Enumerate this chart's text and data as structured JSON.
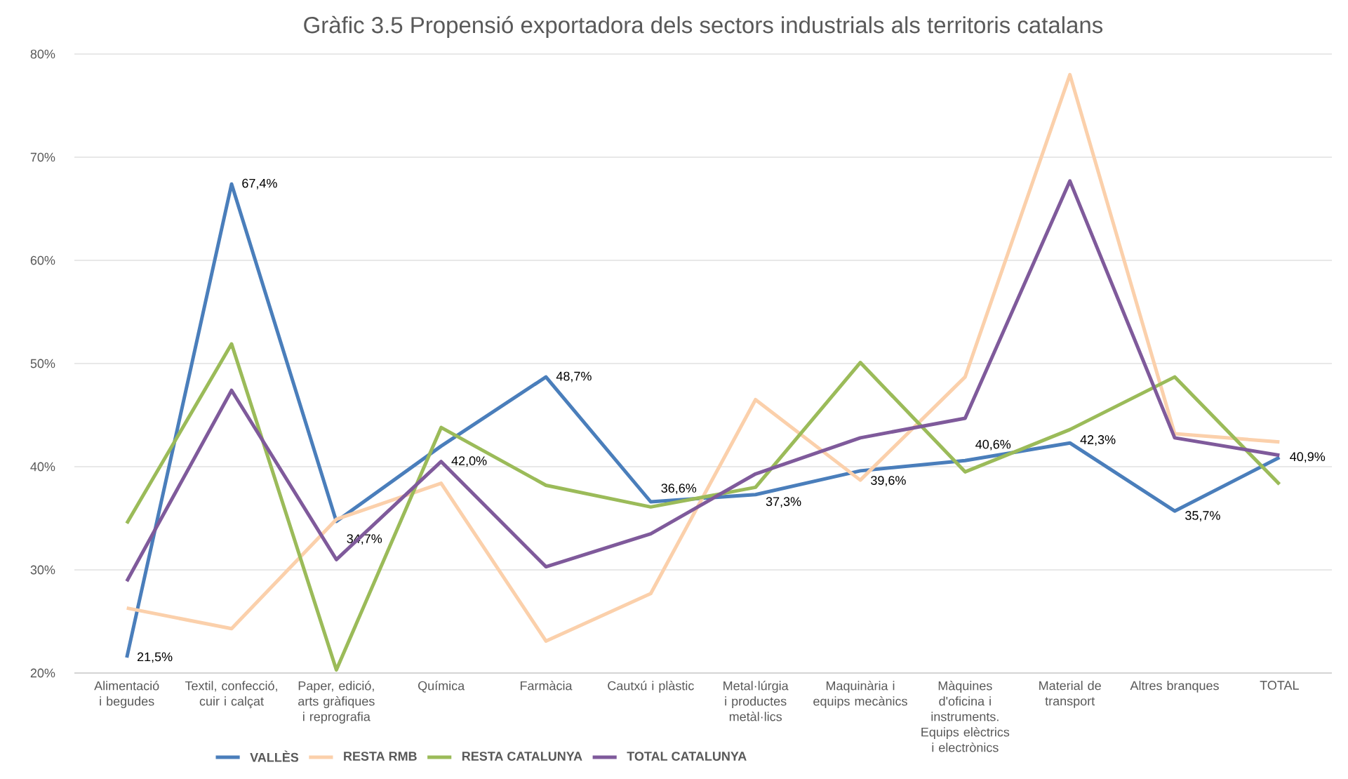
{
  "chart_data": {
    "type": "line",
    "title": "Gràfic 3.5 Propensió exportadora dels sectors industrials als territoris catalans",
    "categories": [
      "Alimentació i begudes",
      "Textil, confecció, cuir i calçat",
      "Paper, edició, arts gràfiques i reprografia",
      "Química",
      "Farmàcia",
      "Cautxú i plàstic",
      "Metal·lúrgia i productes metàl·lics",
      "Maquinària i equips mecànics",
      "Màquines d'oficina i instruments. Equips elèctrics i electrònics",
      "Material de transport",
      "Altres branques",
      "TOTAL"
    ],
    "series": [
      {
        "name": "VALLÈS",
        "color": "#4a7ebb",
        "values": [
          21.5,
          67.4,
          34.7,
          42.0,
          48.7,
          36.6,
          37.3,
          39.6,
          40.6,
          42.3,
          35.7,
          40.9
        ],
        "value_labels": [
          "21,5%",
          "67,4%",
          "34,7%",
          "42,0%",
          "48,7%",
          "36,6%",
          "37,3%",
          "39,6%",
          "40,6%",
          "42,3%",
          "35,7%",
          "40,9%"
        ]
      },
      {
        "name": "RESTA RMB",
        "color": "#fbd0ab",
        "values": [
          26.3,
          24.3,
          34.9,
          38.4,
          23.1,
          27.7,
          46.5,
          38.7,
          48.7,
          78.0,
          43.2,
          42.4
        ]
      },
      {
        "name": "RESTA CATALUNYA",
        "color": "#9bbb59",
        "values": [
          34.5,
          51.9,
          20.3,
          43.8,
          38.2,
          36.1,
          38.0,
          50.1,
          39.5,
          43.6,
          48.7,
          38.3
        ]
      },
      {
        "name": "TOTAL  CATALUNYA",
        "color": "#7f5a9b",
        "values": [
          28.9,
          47.4,
          31.0,
          40.5,
          30.3,
          33.5,
          39.3,
          42.8,
          44.7,
          67.7,
          42.8,
          41.1
        ]
      }
    ],
    "ylim": [
      20,
      80
    ],
    "yticks": [
      {
        "value": 20,
        "label": "20%"
      },
      {
        "value": 30,
        "label": "30%"
      },
      {
        "value": 40,
        "label": "40%"
      },
      {
        "value": 50,
        "label": "50%"
      },
      {
        "value": 60,
        "label": "60%"
      },
      {
        "value": 70,
        "label": "70%"
      },
      {
        "value": 80,
        "label": "80%"
      }
    ],
    "grid": "y",
    "legend": "bottom",
    "marker": "none",
    "line_style": "solid"
  }
}
